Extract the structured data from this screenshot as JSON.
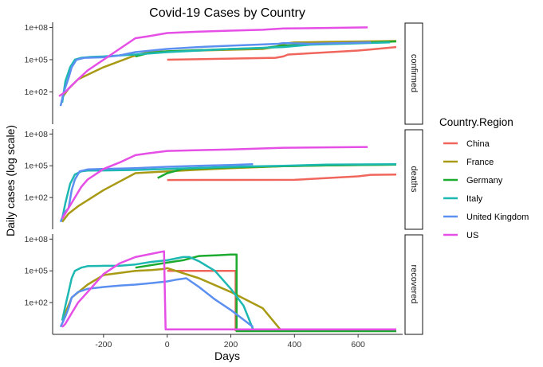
{
  "chart_data": {
    "type": "line",
    "title": "Covid-19 Cases by Country",
    "xlabel": "Days",
    "ylabel": "Daily cases (log scale)",
    "y_scale": "log10",
    "xlim": [
      -360,
      740
    ],
    "ylim": [
      0.1,
      300000000
    ],
    "x_ticks": [
      -200,
      0,
      200,
      400,
      600
    ],
    "x_tick_labels": [
      "-200",
      "0",
      "200",
      "400",
      "600"
    ],
    "y_ticks": [
      100,
      100000,
      100000000
    ],
    "y_tick_labels": [
      "1e+02",
      "1e+05",
      "1e+08"
    ],
    "grid": false,
    "legend": {
      "title": "Country.Region",
      "position": "right",
      "entries": [
        "China",
        "France",
        "Germany",
        "Italy",
        "United Kingdom",
        "US"
      ]
    },
    "colors": {
      "China": "#F0655C",
      "France": "#A89A15",
      "Germany": "#1CAA2F",
      "Italy": "#1DB8B2",
      "United Kingdom": "#5B8FF0",
      "US": "#E54FE6"
    },
    "facets": [
      {
        "label": "confirmed",
        "series": [
          {
            "name": "China",
            "points": [
              [
                0,
                100000
              ],
              [
                340,
                150000
              ],
              [
                365,
                200000
              ],
              [
                380,
                300000
              ],
              [
                600,
                700000
              ],
              [
                640,
                900000
              ],
              [
                720,
                1500000
              ]
            ]
          },
          {
            "name": "France",
            "points": [
              [
                -330,
                30
              ],
              [
                -310,
                200
              ],
              [
                -280,
                1500
              ],
              [
                -200,
                20000
              ],
              [
                -110,
                200000
              ],
              [
                -60,
                500000
              ],
              [
                0,
                600000
              ],
              [
                300,
                1000000
              ],
              [
                340,
                1500000
              ],
              [
                365,
                3000000
              ],
              [
                400,
                4000000
              ],
              [
                500,
                4500000
              ],
              [
                720,
                5500000
              ]
            ]
          },
          {
            "name": "Germany",
            "points": [
              [
                -100,
                200000
              ],
              [
                -60,
                400000
              ],
              [
                0,
                600000
              ],
              [
                200,
                1000000
              ],
              [
                300,
                1200000
              ],
              [
                365,
                2000000
              ],
              [
                500,
                3000000
              ],
              [
                650,
                4000000
              ],
              [
                720,
                5000000
              ]
            ]
          },
          {
            "name": "Italy",
            "points": [
              [
                -330,
                10
              ],
              [
                -320,
                1000
              ],
              [
                -305,
                20000
              ],
              [
                -290,
                100000
              ],
              [
                -270,
                150000
              ],
              [
                -240,
                180000
              ],
              [
                -200,
                200000
              ],
              [
                -100,
                300000
              ],
              [
                0,
                500000
              ],
              [
                200,
                1000000
              ],
              [
                365,
                1500000
              ],
              [
                450,
                2500000
              ],
              [
                550,
                3000000
              ],
              [
                700,
                4000000
              ]
            ]
          },
          {
            "name": "United Kingdom",
            "points": [
              [
                -335,
                5
              ],
              [
                -325,
                100
              ],
              [
                -310,
                2000
              ],
              [
                -300,
                20000
              ],
              [
                -285,
                100000
              ],
              [
                -260,
                150000
              ],
              [
                -200,
                170000
              ],
              [
                -150,
                250000
              ],
              [
                -100,
                500000
              ],
              [
                0,
                1000000
              ],
              [
                100,
                1500000
              ],
              [
                200,
                2000000
              ],
              [
                280,
                2500000
              ],
              [
                350,
                3000000
              ],
              [
                365,
                3500000
              ],
              [
                450,
                3000000
              ],
              [
                550,
                3500000
              ],
              [
                640,
                4000000
              ]
            ]
          },
          {
            "name": "US",
            "points": [
              [
                -340,
                40
              ],
              [
                -320,
                100
              ],
              [
                -300,
                400
              ],
              [
                -280,
                1500
              ],
              [
                -250,
                10000
              ],
              [
                -200,
                100000
              ],
              [
                -150,
                1000000
              ],
              [
                -100,
                10000000
              ],
              [
                -60,
                15000000
              ],
              [
                0,
                30000000
              ],
              [
                100,
                40000000
              ],
              [
                200,
                50000000
              ],
              [
                300,
                60000000
              ],
              [
                365,
                80000000
              ],
              [
                500,
                90000000
              ],
              [
                630,
                100000000
              ]
            ]
          }
        ]
      },
      {
        "label": "deaths",
        "series": [
          {
            "name": "China",
            "points": [
              [
                0,
                4500
              ],
              [
                200,
                4600
              ],
              [
                400,
                4700
              ],
              [
                600,
                10000
              ],
              [
                640,
                14000
              ],
              [
                720,
                15000
              ]
            ]
          },
          {
            "name": "France",
            "points": [
              [
                -330,
                0.5
              ],
              [
                -310,
                3
              ],
              [
                -280,
                15
              ],
              [
                -200,
                500
              ],
              [
                -100,
                20000
              ],
              [
                0,
                30000
              ],
              [
                200,
                60000
              ],
              [
                365,
                90000
              ],
              [
                500,
                110000
              ],
              [
                720,
                130000
              ]
            ]
          },
          {
            "name": "Germany",
            "points": [
              [
                -30,
                7000
              ],
              [
                0,
                20000
              ],
              [
                50,
                50000
              ],
              [
                200,
                70000
              ],
              [
                365,
                90000
              ],
              [
                500,
                110000
              ],
              [
                720,
                130000
              ]
            ]
          },
          {
            "name": "Italy",
            "points": [
              [
                -330,
                1
              ],
              [
                -320,
                30
              ],
              [
                -305,
                2000
              ],
              [
                -290,
                15000
              ],
              [
                -270,
                30000
              ],
              [
                -250,
                35000
              ],
              [
                -200,
                36000
              ],
              [
                -100,
                40000
              ],
              [
                0,
                50000
              ],
              [
                200,
                80000
              ],
              [
                365,
                100000
              ],
              [
                500,
                130000
              ],
              [
                720,
                140000
              ]
            ]
          },
          {
            "name": "United Kingdom",
            "points": [
              [
                -335,
                0.5
              ],
              [
                -325,
                3
              ],
              [
                -310,
                10
              ],
              [
                -300,
                500
              ],
              [
                -290,
                5000
              ],
              [
                -275,
                30000
              ],
              [
                -250,
                45000
              ],
              [
                -200,
                50000
              ],
              [
                -100,
                60000
              ],
              [
                0,
                80000
              ],
              [
                100,
                100000
              ],
              [
                200,
                120000
              ],
              [
                270,
                140000
              ]
            ]
          },
          {
            "name": "US",
            "points": [
              [
                -330,
                1
              ],
              [
                -310,
                10
              ],
              [
                -290,
                100
              ],
              [
                -270,
                1000
              ],
              [
                -250,
                5000
              ],
              [
                -200,
                50000
              ],
              [
                -150,
                200000
              ],
              [
                -100,
                1000000
              ],
              [
                -60,
                1500000
              ],
              [
                0,
                2500000
              ],
              [
                100,
                3000000
              ],
              [
                200,
                3500000
              ],
              [
                365,
                5000000
              ],
              [
                500,
                5500000
              ],
              [
                630,
                6000000
              ]
            ]
          }
        ]
      },
      {
        "label": "recovered",
        "series": [
          {
            "name": "China",
            "points": [
              [
                0,
                100000
              ],
              [
                215,
                100000
              ],
              [
                215,
                0.2
              ]
            ]
          },
          {
            "name": "France",
            "points": [
              [
                -330,
                2
              ],
              [
                -300,
                300
              ],
              [
                -250,
                5000
              ],
              [
                -200,
                40000
              ],
              [
                -100,
                100000
              ],
              [
                -50,
                120000
              ],
              [
                -10,
                150000
              ],
              [
                0,
                180000
              ],
              [
                100,
                20000
              ],
              [
                200,
                1000
              ],
              [
                300,
                30
              ],
              [
                355,
                0.3
              ],
              [
                720,
                0.3
              ]
            ]
          },
          {
            "name": "Germany",
            "points": [
              [
                -100,
                200000
              ],
              [
                0,
                600000
              ],
              [
                50,
                1000000
              ],
              [
                100,
                2500000
              ],
              [
                160,
                3000000
              ],
              [
                200,
                3500000
              ],
              [
                218,
                3500000
              ],
              [
                218,
                0.2
              ],
              [
                720,
                0.2
              ]
            ]
          },
          {
            "name": "Italy",
            "points": [
              [
                -330,
                2
              ],
              [
                -320,
                50
              ],
              [
                -310,
                1000
              ],
              [
                -300,
                20000
              ],
              [
                -290,
                100000
              ],
              [
                -270,
                200000
              ],
              [
                -250,
                280000
              ],
              [
                -200,
                300000
              ],
              [
                -150,
                300000
              ],
              [
                -100,
                400000
              ],
              [
                -50,
                700000
              ],
              [
                0,
                1000000
              ],
              [
                50,
                2000000
              ],
              [
                70,
                2000000
              ],
              [
                100,
                800000
              ],
              [
                150,
                100000
              ],
              [
                200,
                2000
              ],
              [
                240,
                50
              ],
              [
                270,
                0.3
              ]
            ]
          },
          {
            "name": "United Kingdom",
            "points": [
              [
                -335,
                0.5
              ],
              [
                -320,
                5
              ],
              [
                -310,
                30
              ],
              [
                -300,
                300
              ],
              [
                -280,
                1000
              ],
              [
                -250,
                2000
              ],
              [
                -200,
                3000
              ],
              [
                -150,
                4000
              ],
              [
                -100,
                5000
              ],
              [
                -50,
                7000
              ],
              [
                0,
                10000
              ],
              [
                30,
                15000
              ],
              [
                60,
                20000
              ],
              [
                100,
                3000
              ],
              [
                150,
                200
              ],
              [
                200,
                20
              ],
              [
                270,
                0.5
              ]
            ]
          },
          {
            "name": "US",
            "points": [
              [
                -330,
                0.5
              ],
              [
                -320,
                1
              ],
              [
                -300,
                10
              ],
              [
                -280,
                100
              ],
              [
                -250,
                1000
              ],
              [
                -200,
                50000
              ],
              [
                -150,
                500000
              ],
              [
                -100,
                2000000
              ],
              [
                -50,
                4000000
              ],
              [
                -10,
                7000000
              ],
              [
                -5,
                0.3
              ],
              [
                720,
                0.3
              ]
            ]
          }
        ]
      }
    ]
  }
}
